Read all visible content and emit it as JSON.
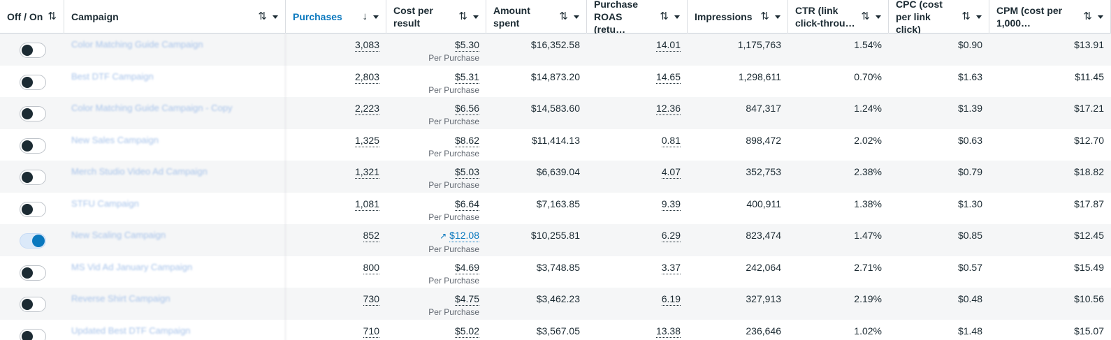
{
  "header": [
    {
      "key": "toggle",
      "label": "Off / On",
      "sort": "⇅",
      "caret": false,
      "active": false
    },
    {
      "key": "campaign",
      "label": "Campaign",
      "sort": "⇅",
      "caret": true,
      "active": false
    },
    {
      "key": "purchases",
      "label": "Purchases",
      "sort": "↓",
      "caret": true,
      "active": true
    },
    {
      "key": "cpr",
      "label": "Cost per result",
      "sort": "⇅",
      "caret": true,
      "active": false
    },
    {
      "key": "spent",
      "label": "Amount spent",
      "sort": "⇅",
      "caret": true,
      "active": false
    },
    {
      "key": "roas",
      "label": "Purchase ROAS (retu…",
      "sort": "⇅",
      "caret": true,
      "active": false
    },
    {
      "key": "impr",
      "label": "Impressions",
      "sort": "⇅",
      "caret": true,
      "active": false
    },
    {
      "key": "ctr",
      "label": "CTR (link click-throu…",
      "sort": "⇅",
      "caret": true,
      "active": false
    },
    {
      "key": "cpc",
      "label": "CPC (cost per link click)",
      "sort": "⇅",
      "caret": true,
      "active": false
    },
    {
      "key": "cpm",
      "label": "CPM (cost per 1,000…",
      "sort": "⇅",
      "caret": true,
      "active": false
    }
  ],
  "result_label": "Per Purchase",
  "colors": {
    "accent": "#0a78be",
    "text": "#1c2b33",
    "muted": "#606770"
  },
  "rows": [
    {
      "on": false,
      "campaign": "Color Matching Guide Campaign",
      "purchases": "3,083",
      "cpr": "$5.30",
      "trend": false,
      "spent": "$16,352.58",
      "roas": "14.01",
      "impr": "1,175,763",
      "ctr": "1.54%",
      "cpc": "$0.90",
      "cpm": "$13.91"
    },
    {
      "on": false,
      "campaign": "Best DTF Campaign",
      "purchases": "2,803",
      "cpr": "$5.31",
      "trend": false,
      "spent": "$14,873.20",
      "roas": "14.65",
      "impr": "1,298,611",
      "ctr": "0.70%",
      "cpc": "$1.63",
      "cpm": "$11.45"
    },
    {
      "on": false,
      "campaign": "Color Matching Guide Campaign - Copy",
      "purchases": "2,223",
      "cpr": "$6.56",
      "trend": false,
      "spent": "$14,583.60",
      "roas": "12.36",
      "impr": "847,317",
      "ctr": "1.24%",
      "cpc": "$1.39",
      "cpm": "$17.21"
    },
    {
      "on": false,
      "campaign": "New Sales Campaign",
      "purchases": "1,325",
      "cpr": "$8.62",
      "trend": false,
      "spent": "$11,414.13",
      "roas": "0.81",
      "impr": "898,472",
      "ctr": "2.02%",
      "cpc": "$0.63",
      "cpm": "$12.70"
    },
    {
      "on": false,
      "campaign": "Merch Studio Video Ad Campaign",
      "purchases": "1,321",
      "cpr": "$5.03",
      "trend": false,
      "spent": "$6,639.04",
      "roas": "4.07",
      "impr": "352,753",
      "ctr": "2.38%",
      "cpc": "$0.79",
      "cpm": "$18.82"
    },
    {
      "on": false,
      "campaign": "STFU Campaign",
      "purchases": "1,081",
      "cpr": "$6.64",
      "trend": false,
      "spent": "$7,163.85",
      "roas": "9.39",
      "impr": "400,911",
      "ctr": "1.38%",
      "cpc": "$1.30",
      "cpm": "$17.87"
    },
    {
      "on": true,
      "campaign": "New Scaling Campaign",
      "purchases": "852",
      "cpr": "$12.08",
      "trend": true,
      "spent": "$10,255.81",
      "roas": "6.29",
      "impr": "823,474",
      "ctr": "1.47%",
      "cpc": "$0.85",
      "cpm": "$12.45"
    },
    {
      "on": false,
      "campaign": "MS Vid Ad January Campaign",
      "purchases": "800",
      "cpr": "$4.69",
      "trend": false,
      "spent": "$3,748.85",
      "roas": "3.37",
      "impr": "242,064",
      "ctr": "2.71%",
      "cpc": "$0.57",
      "cpm": "$15.49"
    },
    {
      "on": false,
      "campaign": "Reverse Shirt Campaign",
      "purchases": "730",
      "cpr": "$4.75",
      "trend": false,
      "spent": "$3,462.23",
      "roas": "6.19",
      "impr": "327,913",
      "ctr": "2.19%",
      "cpc": "$0.48",
      "cpm": "$10.56"
    },
    {
      "on": false,
      "campaign": "Updated Best DTF Campaign",
      "purchases": "710",
      "cpr": "$5.02",
      "trend": false,
      "spent": "$3,567.05",
      "roas": "13.38",
      "impr": "236,646",
      "ctr": "1.02%",
      "cpc": "$1.48",
      "cpm": "$15.07"
    }
  ]
}
